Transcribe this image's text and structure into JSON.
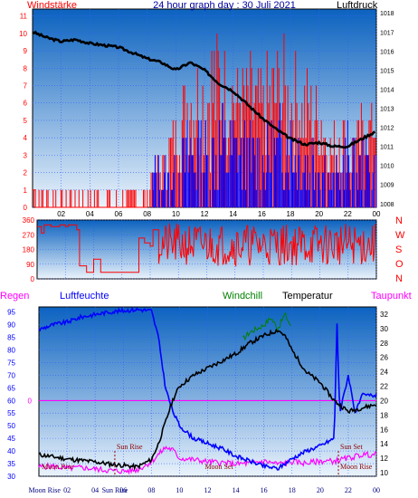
{
  "chart_data": [
    {
      "type": "line",
      "title": "24 hour graph day : 30 Juli 2021",
      "left_label": "Windstärke",
      "right_label": "Luftdruck",
      "x_ticks": [
        "02",
        "04",
        "06",
        "08",
        "10",
        "12",
        "14",
        "16",
        "18",
        "20",
        "22",
        "00"
      ],
      "y_left_ticks": [
        0,
        1,
        2,
        3,
        4,
        5,
        6,
        7,
        8,
        9,
        10,
        11
      ],
      "y_right_ticks": [
        1008,
        1009,
        1010,
        1011,
        1012,
        1013,
        1014,
        1015,
        1016,
        1017,
        1018
      ],
      "ylim_left": [
        0,
        11.4
      ],
      "ylim_right": [
        1007.8,
        1018.2
      ],
      "xlim": [
        0,
        24
      ],
      "pressure": {
        "x": [
          0,
          1,
          2,
          3,
          4,
          5,
          6,
          7,
          8,
          9,
          10,
          11,
          12,
          13,
          14,
          15,
          16,
          17,
          18,
          19,
          20,
          21,
          22,
          23,
          24
        ],
        "y": [
          1017.0,
          1016.7,
          1016.5,
          1016.6,
          1016.4,
          1016.3,
          1016.2,
          1015.9,
          1015.6,
          1015.4,
          1015.0,
          1015.4,
          1015.0,
          1014.3,
          1013.9,
          1013.2,
          1012.5,
          1011.9,
          1011.4,
          1011.1,
          1011.2,
          1011.0,
          1011.0,
          1011.4,
          1011.8
        ]
      },
      "wind_gust_envelope": {
        "x": [
          0,
          8,
          8.4,
          9,
          10,
          11,
          12,
          13,
          14,
          15,
          16,
          17,
          18,
          19,
          20,
          21,
          21.5,
          22,
          23,
          24
        ],
        "low": [
          0,
          0,
          1,
          1,
          2,
          3,
          2,
          3,
          3,
          3,
          3,
          3,
          2,
          3,
          2,
          1,
          1,
          1,
          2,
          3
        ],
        "high": [
          1,
          1,
          3,
          3,
          6,
          9,
          10,
          11,
          9,
          9,
          8,
          10,
          10,
          8,
          8,
          5,
          9,
          4,
          6,
          6
        ]
      },
      "wind_mean_envelope": {
        "x": [
          8.4,
          9,
          10,
          11,
          12,
          13,
          14,
          15,
          16,
          17,
          18,
          19,
          20,
          21,
          22,
          23,
          24
        ],
        "low": [
          0,
          0,
          0,
          0,
          0,
          0,
          1,
          0,
          0,
          0,
          1,
          0,
          0,
          0,
          0,
          0,
          0
        ],
        "high": [
          3,
          3,
          3,
          6,
          5,
          6,
          6,
          5,
          5,
          6,
          6,
          5,
          5,
          2,
          5,
          4,
          4
        ]
      }
    },
    {
      "type": "line",
      "y_ticks": [
        0,
        90,
        180,
        270,
        360
      ],
      "ylim": [
        0,
        360
      ],
      "xlim": [
        0,
        24
      ],
      "compass_labels": [
        "N",
        "W",
        "S",
        "O",
        "N"
      ],
      "direction": {
        "x": [
          0,
          0.3,
          0.5,
          1,
          1.6,
          2,
          2.2,
          2.8,
          3,
          3.5,
          4,
          4.5,
          5,
          5.5,
          6,
          6.5,
          7,
          7.2,
          7.6,
          8,
          8.2,
          8.6
        ],
        "y": [
          320,
          280,
          330,
          320,
          330,
          320,
          330,
          300,
          80,
          40,
          120,
          40,
          40,
          40,
          40,
          40,
          40,
          250,
          220,
          200,
          300,
          250
        ]
      },
      "direction_band": {
        "x": [
          8.6,
          24
        ],
        "low": 80,
        "high": 340
      }
    },
    {
      "type": "line",
      "left_label": "Regen",
      "left_label2": "Luftfeuchte",
      "right_label": "Windchill",
      "right_label2": "Temperatur",
      "right_label3": "Taupunkt",
      "y_left_ticks": [
        30,
        35,
        40,
        45,
        50,
        55,
        60,
        65,
        70,
        75,
        80,
        85,
        90,
        95
      ],
      "y_right_ticks": [
        10,
        12,
        14,
        16,
        18,
        20,
        22,
        24,
        26,
        28,
        30,
        32
      ],
      "rain_marker": "0",
      "ylim_left": [
        30,
        97
      ],
      "ylim_right": [
        9.5,
        33
      ],
      "xlim": [
        0,
        24
      ],
      "x_ticks": [
        "02",
        "04",
        "06",
        "08",
        "10",
        "12",
        "14",
        "16",
        "18",
        "20",
        "22",
        "00"
      ],
      "humidity": {
        "x": [
          0,
          1,
          2,
          3,
          4,
          5,
          6,
          7,
          8,
          8.5,
          9,
          9.5,
          10,
          11,
          12,
          13,
          14,
          15,
          16,
          17,
          17.5,
          18,
          19,
          20,
          21,
          21.2,
          21.4,
          22,
          22.5,
          23,
          24
        ],
        "y": [
          88,
          90,
          91,
          93,
          94,
          95,
          95.5,
          96,
          95.5,
          85,
          65,
          56,
          50,
          45,
          43,
          41,
          38,
          36,
          34,
          33,
          35,
          37,
          40,
          42,
          45,
          90,
          55,
          70,
          55,
          62,
          62
        ]
      },
      "temperature": {
        "x": [
          0,
          1,
          2,
          3,
          4,
          5,
          6,
          7,
          8,
          8.5,
          9,
          9.5,
          10,
          11,
          12,
          13,
          14,
          15,
          16,
          17,
          17.5,
          18,
          19,
          20,
          21,
          22,
          23,
          24
        ],
        "y": [
          12.5,
          12.2,
          11.9,
          11.7,
          11.5,
          11.2,
          11.0,
          10.8,
          11.8,
          14.0,
          17.0,
          20.0,
          22.0,
          23.5,
          24.5,
          25.5,
          26.5,
          28.0,
          29.0,
          29.8,
          29.0,
          27.0,
          24.0,
          22.5,
          20.0,
          18.5,
          19.0,
          19.5
        ]
      },
      "windchill": {
        "x": [
          14.5,
          15,
          16,
          16.5,
          17,
          17.5,
          18
        ],
        "y": [
          28.5,
          29.5,
          30.5,
          31.5,
          30.0,
          32.0,
          30.0
        ]
      },
      "dewpoint": {
        "x": [
          0,
          1,
          2,
          3,
          4,
          5,
          6,
          7,
          8,
          8.5,
          9,
          9.5,
          10,
          11,
          12,
          13,
          14,
          15,
          16,
          17,
          18,
          19,
          20,
          21,
          22,
          23,
          24
        ],
        "y": [
          10.8,
          10.9,
          10.6,
          10.7,
          10.5,
          10.3,
          10.2,
          10.4,
          11.5,
          12.5,
          13.5,
          13.2,
          12.0,
          11.8,
          11.5,
          11.4,
          11.2,
          11.3,
          11.6,
          11.2,
          11.5,
          11.3,
          11.6,
          11.6,
          12.0,
          12.5,
          12.5
        ]
      },
      "events": [
        {
          "label": "Moon Rise",
          "x": 0.2,
          "kind": "label"
        },
        {
          "label": "Sun Rise",
          "x": 5.4,
          "kind": "line"
        },
        {
          "label": "Moon Set",
          "x": 11.8,
          "kind": "label"
        },
        {
          "label": "Sun Set",
          "x": 21.3,
          "kind": "line"
        },
        {
          "label": "Moon Rise",
          "x": 23.2,
          "kind": "label"
        }
      ],
      "bottom_ticks": [
        "Moon Rise",
        "02",
        "04",
        "Sun Rise",
        "06",
        "08",
        "10",
        "12",
        "14",
        "16",
        "18",
        "20",
        "22",
        "00"
      ]
    }
  ],
  "colors": {
    "panel_top": "#0b62bf",
    "panel_bottom": "#e8f2fb",
    "grid": "#0000ff",
    "red": "#ff0000",
    "blue": "#0000ff",
    "black": "#000000",
    "magenta": "#ff00ff",
    "green": "#008000",
    "darkred": "#8b0000",
    "title_navy": "#0000a0"
  }
}
